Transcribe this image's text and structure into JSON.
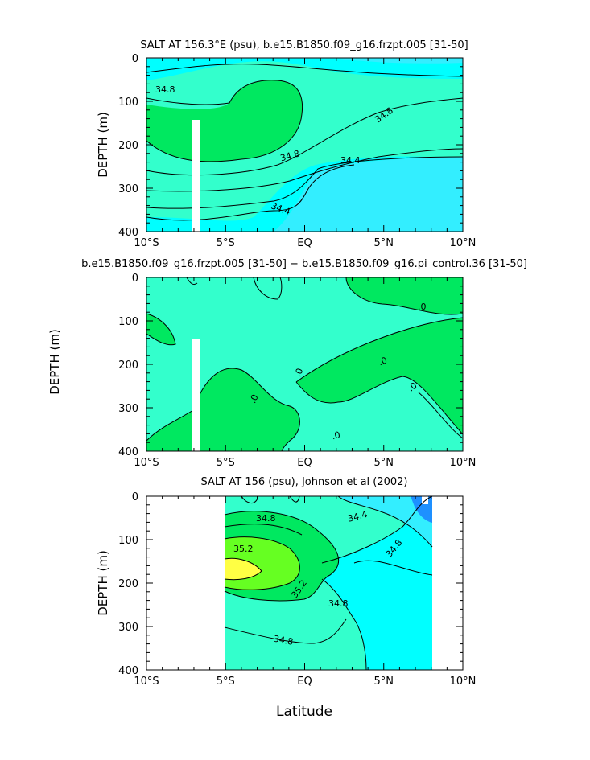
{
  "chart_data": [
    {
      "type": "contour",
      "title": "SALT AT 156.3°E (psu), b.e15.B1850.f09_g16.frzpt.005 [31-50]",
      "ylabel": "DEPTH (m)",
      "xlim": [
        -10,
        10
      ],
      "ylim": [
        400,
        0
      ],
      "y_reversed": true,
      "x_ticks": [
        "10°S",
        "5°S",
        "EQ",
        "5°N",
        "10°N"
      ],
      "y_ticks": [
        "0",
        "100",
        "200",
        "300",
        "400"
      ],
      "contour_labels": [
        "34.8",
        "34.8",
        "34.8",
        "34.4",
        "34.4"
      ],
      "colors": {
        "low": "#33eeff",
        "mid": "#00ffff",
        "midhigh": "#33ffcc",
        "high": "#00e860"
      },
      "missing_column_x": [
        -3.4,
        -2.9
      ],
      "missing_column_depth": [
        145,
        400
      ]
    },
    {
      "type": "contour",
      "title": "b.e15.B1850.f09_g16.frzpt.005 [31-50] − b.e15.B1850.f09_g16.pi_control.36 [31-50]",
      "ylabel": "DEPTH (m)",
      "xlim": [
        -10,
        10
      ],
      "ylim": [
        400,
        0
      ],
      "y_reversed": true,
      "x_ticks": [
        "10°S",
        "5°S",
        "EQ",
        "5°N",
        "10°N"
      ],
      "y_ticks": [
        "0",
        "100",
        "200",
        "300",
        "400"
      ],
      "contour_labels": [
        ".0",
        ".0",
        ".0",
        ".0",
        ".0",
        ".0"
      ],
      "colors": {
        "negative": "#33ffcc",
        "positive": "#00e860"
      },
      "missing_column_x": [
        -3.4,
        -2.9
      ],
      "missing_column_depth": [
        145,
        400
      ]
    },
    {
      "type": "contour",
      "title": "SALT AT 156 (psu), Johnson et al (2002)",
      "ylabel": "DEPTH (m)",
      "xlabel": "Latitude",
      "xlim": [
        -10,
        10
      ],
      "ylim": [
        400,
        0
      ],
      "y_reversed": true,
      "data_x_range": [
        -5,
        8
      ],
      "x_ticks": [
        "10°S",
        "5°S",
        "EQ",
        "5°N",
        "10°N"
      ],
      "y_ticks": [
        "0",
        "100",
        "200",
        "300",
        "400"
      ],
      "contour_labels": [
        "34.8",
        "34.4",
        "34.8",
        "35.2",
        "35.2",
        "34.8",
        "34.8"
      ],
      "colors": {
        "fresh": "#1e90ff",
        "low": "#33eeff",
        "mid": "#33ffcc",
        "high": "#00e860",
        "higher": "#66ff22",
        "highest": "#ffff44"
      }
    }
  ]
}
